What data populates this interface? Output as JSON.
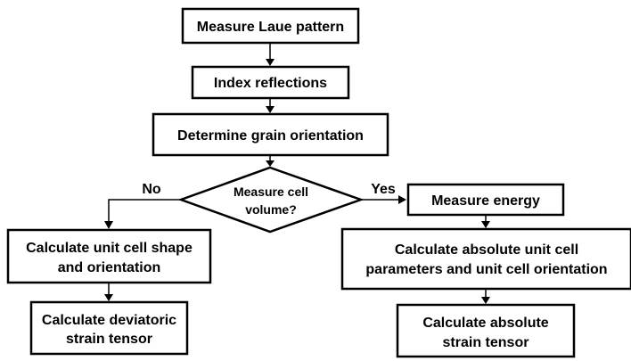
{
  "nodes": {
    "measure_laue": {
      "lines": [
        "Measure Laue pattern"
      ]
    },
    "index_reflections": {
      "lines": [
        "Index reflections"
      ]
    },
    "grain_orientation": {
      "lines": [
        "Determine grain orientation"
      ]
    },
    "decision": {
      "lines": [
        "Measure cell",
        "volume?"
      ]
    },
    "measure_energy": {
      "lines": [
        "Measure energy"
      ]
    },
    "unit_cell_shape": {
      "lines": [
        "Calculate unit cell shape",
        "and orientation"
      ]
    },
    "absolute_params": {
      "lines": [
        "Calculate absolute unit cell",
        "parameters and unit cell orientation"
      ]
    },
    "deviatoric_strain": {
      "lines": [
        "Calculate deviatoric",
        "strain tensor"
      ]
    },
    "absolute_strain": {
      "lines": [
        "Calculate absolute",
        "strain tensor"
      ]
    }
  },
  "branches": {
    "no": "No",
    "yes": "Yes"
  }
}
